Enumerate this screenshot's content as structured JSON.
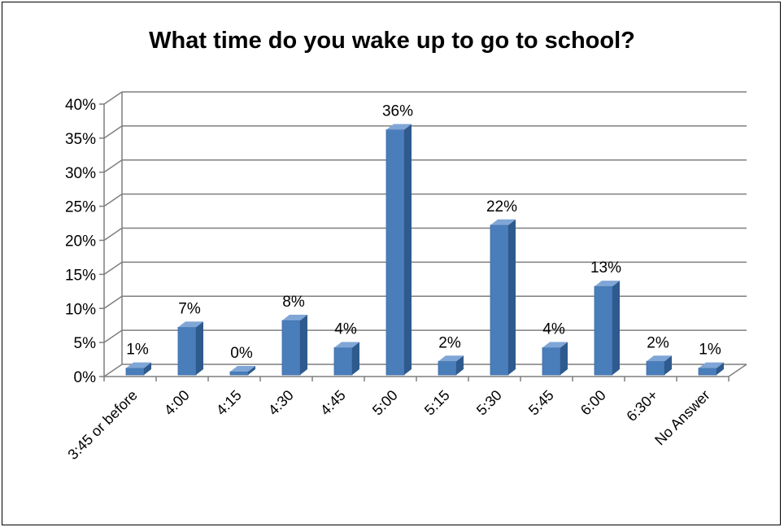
{
  "chart_data": {
    "type": "bar",
    "title": "What time do you wake up to go to school?",
    "categories": [
      "3:45 or before",
      "4:00",
      "4:15",
      "4:30",
      "4:45",
      "5:00",
      "5:15",
      "5:30",
      "5:45",
      "6:00",
      "6:30+",
      "No Answer"
    ],
    "values": [
      1,
      7,
      0,
      8,
      4,
      36,
      2,
      22,
      4,
      13,
      2,
      1
    ],
    "data_labels": [
      "1%",
      "7%",
      "0%",
      "8%",
      "4%",
      "36%",
      "2%",
      "22%",
      "4%",
      "13%",
      "2%",
      "1%"
    ],
    "yticks": [
      "0%",
      "5%",
      "10%",
      "15%",
      "20%",
      "25%",
      "30%",
      "35%",
      "40%"
    ],
    "ylim": [
      0,
      40
    ],
    "grid": true,
    "legend": "none",
    "bar_color": "#4A7EBB",
    "bar_side_color": "#2E5A8E",
    "bar_top_color": "#7FA6D6",
    "xlabel": "",
    "ylabel": ""
  }
}
